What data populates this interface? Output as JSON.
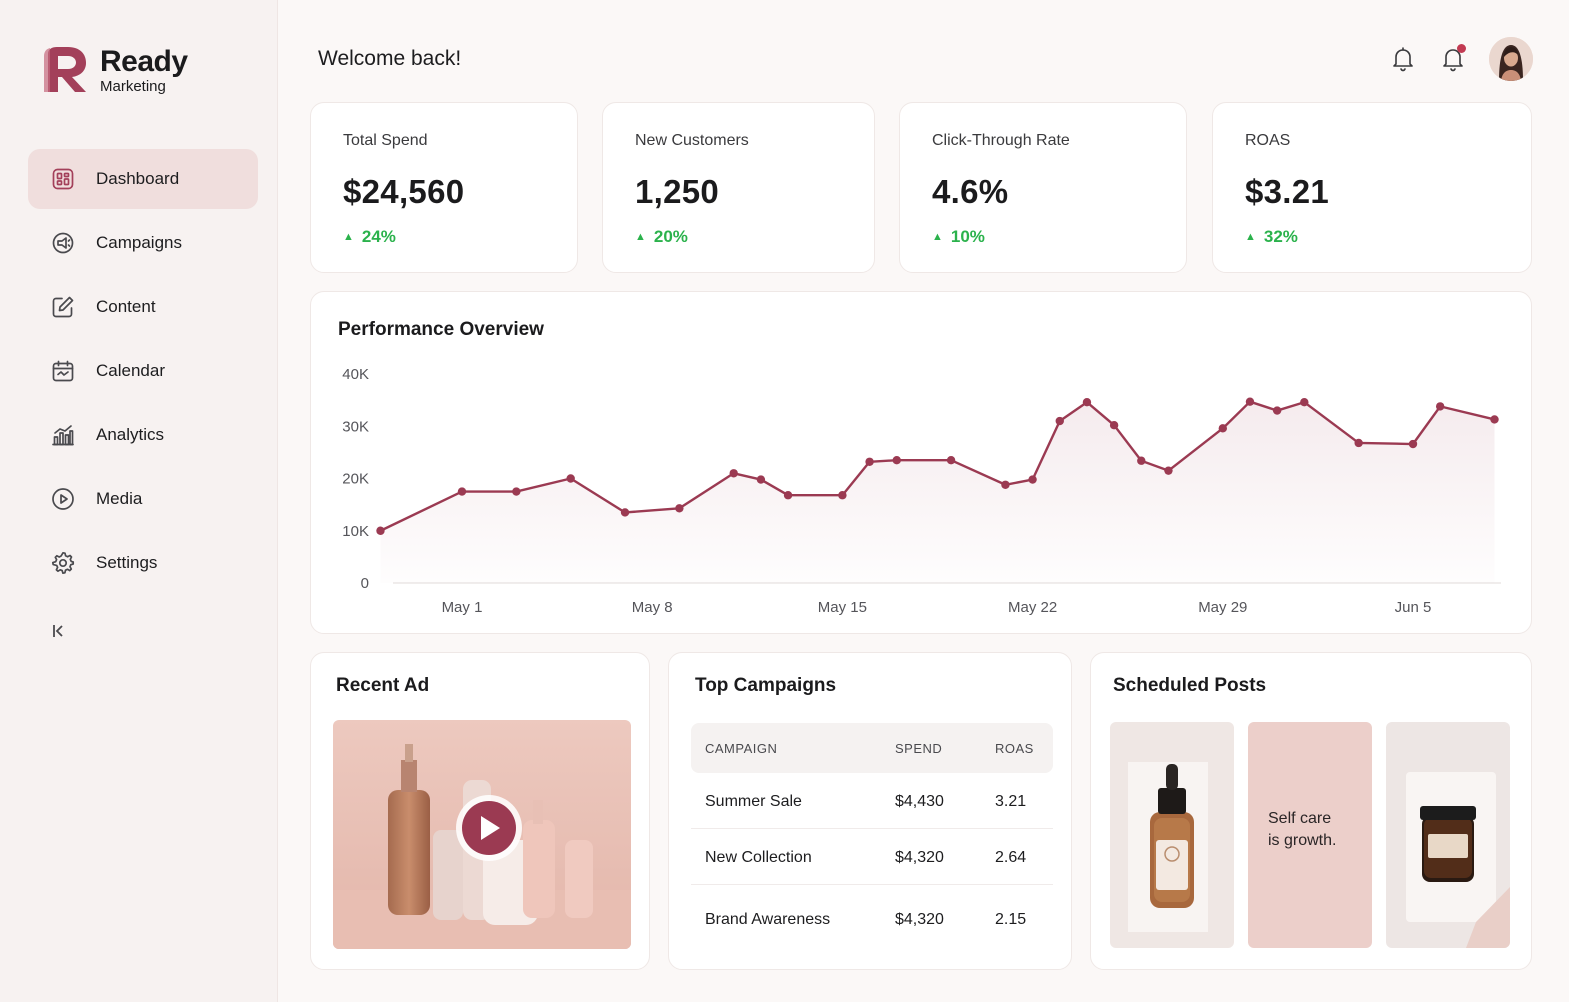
{
  "brand": {
    "name": "Ready",
    "subtitle": "Marketing",
    "accent": "#a3405a"
  },
  "sidebar": {
    "items": [
      {
        "label": "Dashboard",
        "icon": "dashboard-icon",
        "active": true
      },
      {
        "label": "Campaigns",
        "icon": "megaphone-icon"
      },
      {
        "label": "Content",
        "icon": "edit-icon"
      },
      {
        "label": "Calendar",
        "icon": "calendar-icon"
      },
      {
        "label": "Analytics",
        "icon": "bar-chart-icon"
      },
      {
        "label": "Media",
        "icon": "play-circle-icon"
      },
      {
        "label": "Settings",
        "icon": "gear-icon"
      }
    ],
    "collapse_icon": "collapse-left-icon"
  },
  "header": {
    "welcome": "Welcome back!",
    "icons": [
      "bell-icon",
      "notification-bell-icon",
      "avatar"
    ]
  },
  "stats": [
    {
      "label": "Total Spend",
      "value": "$24,560",
      "change": "24%"
    },
    {
      "label": "New Customers",
      "value": "1,250",
      "change": "20%"
    },
    {
      "label": "Click-Through Rate",
      "value": "4.6%",
      "change": "10%"
    },
    {
      "label": "ROAS",
      "value": "$3.21",
      "change": "32%"
    }
  ],
  "performance": {
    "title": "Performance Overview"
  },
  "chart_data": {
    "type": "area",
    "title": "Performance Overview",
    "xlabel": "",
    "ylabel": "",
    "ylim": [
      0,
      40000
    ],
    "y_ticks": [
      "0",
      "10K",
      "20K",
      "30K",
      "40K"
    ],
    "x_ticks": [
      "May 1",
      "May 8",
      "May 15",
      "May 22",
      "May 29",
      "Jun 5"
    ],
    "grid": false,
    "color": "#9b3a52",
    "x": [
      "Apr 28",
      "May 1",
      "May 3",
      "May 5",
      "May 7",
      "May 9",
      "May 11",
      "May 12",
      "May 13",
      "May 15",
      "May 16",
      "May 17",
      "May 19",
      "May 21",
      "May 22",
      "May 23",
      "May 24",
      "May 25",
      "May 26",
      "May 27",
      "May 29",
      "May 30",
      "May 31",
      "Jun 1",
      "Jun 3",
      "Jun 5",
      "Jun 6",
      "Jun 8"
    ],
    "values": [
      10000,
      17500,
      17500,
      20000,
      13500,
      14300,
      21000,
      19800,
      16800,
      16800,
      23200,
      23500,
      23500,
      18800,
      19800,
      31000,
      34600,
      30200,
      23400,
      21500,
      29600,
      34700,
      33000,
      34600,
      26800,
      26600,
      33800,
      31300
    ]
  },
  "recent_ad": {
    "title": "Recent Ad",
    "play_icon": "play-button-icon"
  },
  "top_campaigns": {
    "title": "Top Campaigns",
    "columns": [
      "CAMPAIGN",
      "SPEND",
      "ROAS"
    ],
    "rows": [
      [
        "Summer Sale",
        "$4,430",
        "3.21"
      ],
      [
        "New Collection",
        "$4,320",
        "2.64"
      ],
      [
        "Brand Awareness",
        "$4,320",
        "2.15"
      ]
    ]
  },
  "scheduled_posts": {
    "title": "Scheduled Posts",
    "post_text": "Self care\nis growth.",
    "post_line1": "Self care",
    "post_line2": "is growth."
  }
}
